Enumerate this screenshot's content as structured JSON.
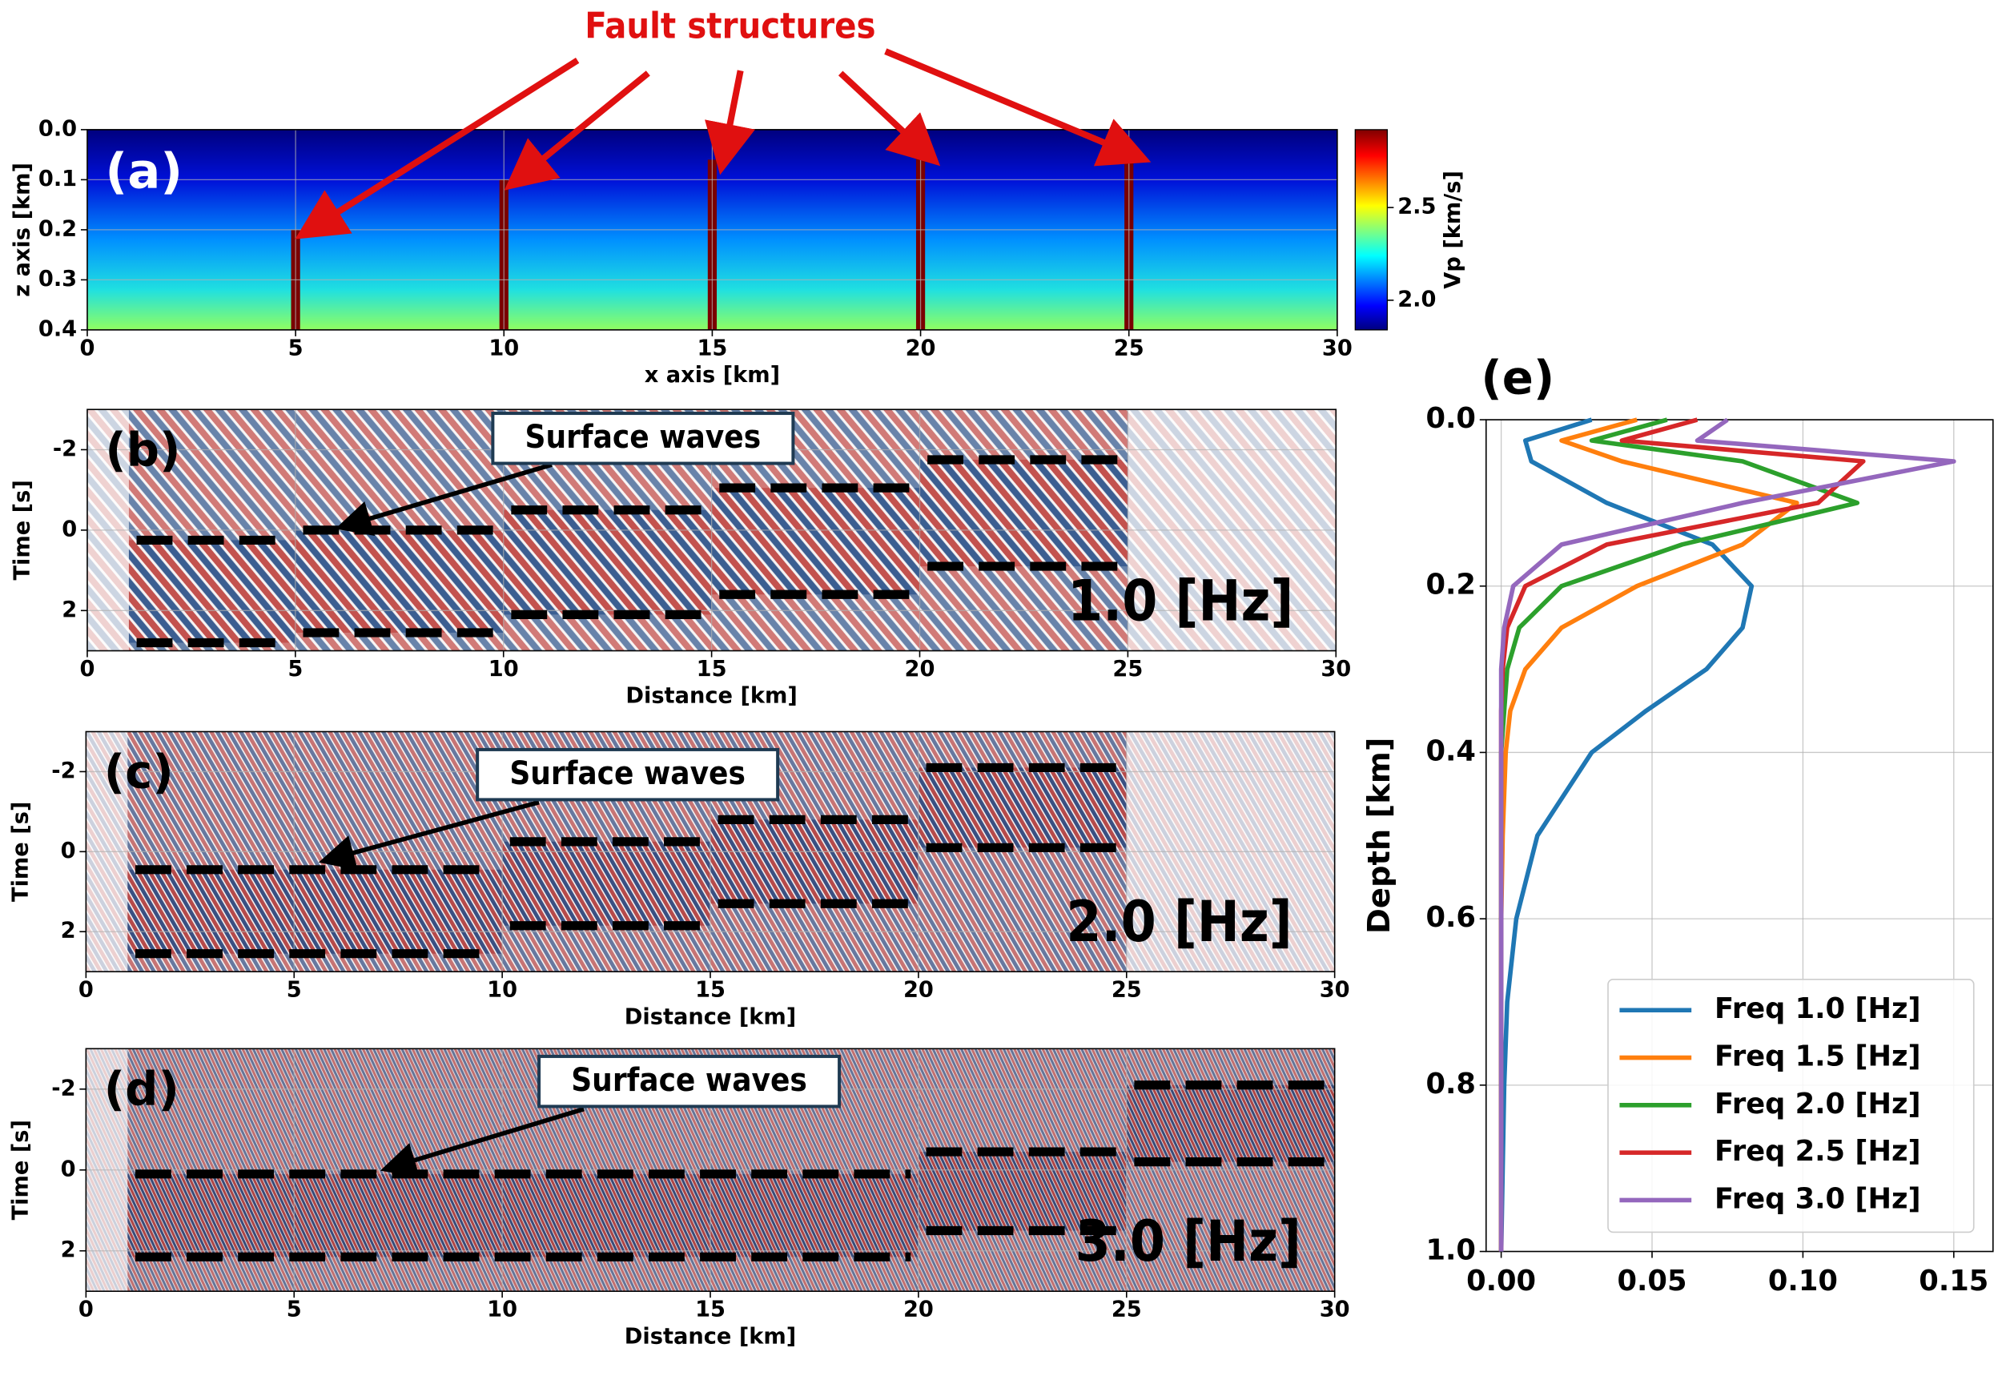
{
  "chart_data": [
    {
      "type": "heatmap",
      "label": "(a)",
      "annotation": "Fault structures",
      "xlabel": "x axis [km]",
      "ylabel": "z axis [km]",
      "xlim": [
        0,
        30
      ],
      "ylim": [
        0.4,
        0
      ],
      "xticks": [
        0,
        5,
        10,
        15,
        20,
        25,
        30
      ],
      "yticks": [
        {
          "value": 0,
          "label": "0.0"
        },
        0.1,
        0.2,
        0.3,
        0.4
      ],
      "grid": true,
      "faults": {
        "x": [
          5,
          10,
          15,
          20,
          25
        ],
        "top": [
          0.2,
          0.1,
          0.06,
          0.05,
          0.05
        ]
      },
      "colorbar": {
        "label": "Vp [km/s]",
        "lim": [
          1.84,
          2.92
        ],
        "ticks": [
          {
            "value": 2,
            "label": "2.0"
          },
          2.5
        ]
      }
    },
    {
      "type": "wavefield",
      "label": "(b)",
      "annotation": "Surface waves",
      "frequency_label": "1.0 [Hz]",
      "xlabel": "Distance [km]",
      "ylabel": "Time [s]",
      "xlim": [
        0,
        30
      ],
      "ylim": [
        3,
        -3
      ],
      "xticks": [
        0,
        5,
        10,
        15,
        20,
        25,
        30
      ],
      "yticks": [
        -2,
        0,
        2
      ],
      "grid": true,
      "windows": {
        "x_start": [
          1,
          5,
          10,
          15,
          20
        ],
        "x_end": [
          5,
          10,
          15,
          20,
          25
        ],
        "top": [
          0.25,
          0,
          -0.5,
          -1.05,
          -1.75
        ],
        "bottom": [
          2.8,
          2.55,
          2.1,
          1.6,
          0.9
        ]
      }
    },
    {
      "type": "wavefield",
      "label": "(c)",
      "annotation": "Surface waves",
      "frequency_label": "2.0 [Hz]",
      "xlabel": "Distance [km]",
      "ylabel": "Time [s]",
      "xlim": [
        0,
        30
      ],
      "ylim": [
        3,
        -3
      ],
      "xticks": [
        0,
        5,
        10,
        15,
        20,
        25,
        30
      ],
      "yticks": [
        -2,
        0,
        2
      ],
      "grid": true,
      "windows": {
        "x_start": [
          1,
          10,
          15,
          20
        ],
        "x_end": [
          10,
          15,
          20,
          25
        ],
        "top": [
          0.45,
          -0.25,
          -0.8,
          -2.1
        ],
        "bottom": [
          2.55,
          1.85,
          1.3,
          -0.1
        ]
      }
    },
    {
      "type": "wavefield",
      "label": "(d)",
      "annotation": "Surface waves",
      "frequency_label": "3.0 [Hz]",
      "xlabel": "Distance [km]",
      "ylabel": "Time [s]",
      "xlim": [
        0,
        30
      ],
      "ylim": [
        3,
        -3
      ],
      "xticks": [
        0,
        5,
        10,
        15,
        20,
        25,
        30
      ],
      "yticks": [
        -2,
        0,
        2
      ],
      "grid": true,
      "windows": {
        "x_start": [
          1,
          20,
          25
        ],
        "x_end": [
          20,
          25,
          30
        ],
        "top": [
          0.1,
          -0.45,
          -2.1
        ],
        "bottom": [
          2.15,
          1.5,
          -0.2
        ]
      }
    },
    {
      "type": "line",
      "label": "(e)",
      "ylabel": "Depth [km]",
      "xlim": [
        -0.005,
        0.163
      ],
      "ylim": [
        1,
        0
      ],
      "xticks": [
        {
          "value": 0,
          "label": "0.00"
        },
        0.05,
        {
          "value": 0.1,
          "label": "0.10"
        },
        0.15
      ],
      "yticks": [
        {
          "value": 0,
          "label": "0.0"
        },
        0.2,
        0.4,
        0.6,
        0.8,
        {
          "value": 1,
          "label": "1.0"
        }
      ],
      "grid": true,
      "legend": "lower right",
      "y": [
        0,
        0.025,
        0.05,
        0.1,
        0.15,
        0.2,
        0.25,
        0.3,
        0.35,
        0.4,
        0.5,
        0.6,
        0.7,
        0.8,
        0.9,
        1.0
      ],
      "series": [
        {
          "name": "Freq 1.0 [Hz]",
          "color": "#1f77b4",
          "values": [
            0.03,
            0.008,
            0.01,
            0.035,
            0.07,
            0.083,
            0.08,
            0.068,
            0.048,
            0.03,
            0.012,
            0.005,
            0.002,
            0.001,
            0.0005,
            0
          ]
        },
        {
          "name": "Freq 1.5 [Hz]",
          "color": "#ff7f0e",
          "values": [
            0.045,
            0.02,
            0.04,
            0.098,
            0.08,
            0.045,
            0.02,
            0.008,
            0.003,
            0.0015,
            0.0005,
            0,
            0,
            0,
            0,
            0
          ]
        },
        {
          "name": "Freq 2.0 [Hz]",
          "color": "#2ca02c",
          "values": [
            0.055,
            0.03,
            0.08,
            0.118,
            0.06,
            0.02,
            0.006,
            0.002,
            0.001,
            0,
            0,
            0,
            0,
            0,
            0,
            0
          ]
        },
        {
          "name": "Freq 2.5 [Hz]",
          "color": "#d62728",
          "values": [
            0.065,
            0.04,
            0.12,
            0.105,
            0.035,
            0.008,
            0.002,
            0.0005,
            0,
            0,
            0,
            0,
            0,
            0,
            0,
            0
          ]
        },
        {
          "name": "Freq 3.0 [Hz]",
          "color": "#9467bd",
          "values": [
            0.075,
            0.065,
            0.15,
            0.08,
            0.02,
            0.004,
            0.001,
            0,
            0,
            0,
            0,
            0,
            0,
            0,
            0,
            0
          ]
        }
      ]
    }
  ]
}
